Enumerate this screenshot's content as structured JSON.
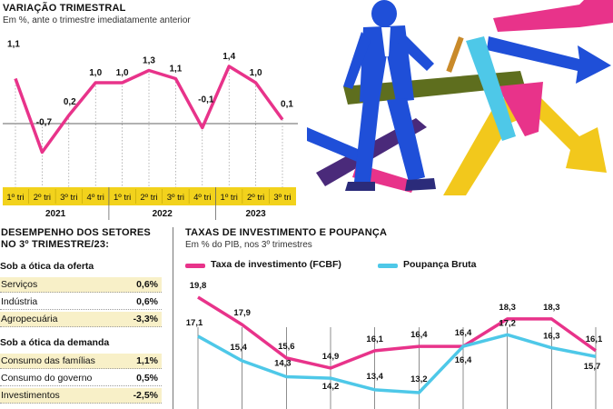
{
  "left_chart": {
    "title": "VARIAÇÃO TRIMESTRAL",
    "subtitle": "Em %, ante o trimestre imediatamente anterior",
    "chart_data": {
      "type": "line",
      "categories": [
        "1º tri",
        "2º tri",
        "3º tri",
        "4º tri",
        "1º tri",
        "2º tri",
        "3º tri",
        "4º tri",
        "1º tri",
        "2º tri",
        "3º tri"
      ],
      "years": [
        {
          "label": "2021",
          "span": [
            0,
            3
          ]
        },
        {
          "label": "2022",
          "span": [
            4,
            7
          ]
        },
        {
          "label": "2023",
          "span": [
            8,
            10
          ]
        }
      ],
      "values": [
        1.1,
        -0.7,
        0.2,
        1.0,
        1.0,
        1.3,
        1.1,
        -0.1,
        1.4,
        1.0,
        0.1
      ],
      "labels": [
        "1,1",
        "-0,7",
        "0,2",
        "1,0",
        "1,0",
        "1,3",
        "1,1",
        "-0,1",
        "1,4",
        "1,0",
        "0,1"
      ],
      "line_color": "#e8338a",
      "band_color": "#f2d21c",
      "zero_line": true
    }
  },
  "sectors": {
    "title_line1": "DESEMPENHO DOS SETORES",
    "title_line2": "NO 3º TRIMESTRE/23:",
    "groups": [
      {
        "heading": "Sob a ótica da oferta",
        "rows": [
          {
            "label": "Serviços",
            "value": "0,6%"
          },
          {
            "label": "Indústria",
            "value": "0,6%"
          },
          {
            "label": "Agropecuária",
            "value": "-3,3%"
          }
        ]
      },
      {
        "heading": "Sob a ótica da demanda",
        "rows": [
          {
            "label": "Consumo das famílias",
            "value": "1,1%"
          },
          {
            "label": "Consumo do governo",
            "value": "0,5%"
          },
          {
            "label": "Investimentos",
            "value": "-2,5%"
          }
        ]
      }
    ],
    "shade_color": "#f8f0c8"
  },
  "right_chart": {
    "title": "TAXAS DE INVESTIMENTO E POUPANÇA",
    "subtitle": "Em % do PIB, nos 3º trimestres",
    "chart_data": {
      "type": "line",
      "series": [
        {
          "name": "Taxa de investimento (FCBF)",
          "color": "#e8338a",
          "values": [
            19.8,
            17.9,
            15.6,
            14.9,
            16.1,
            16.4,
            16.4,
            18.3,
            18.3,
            16.1
          ],
          "labels": [
            "19,8",
            "17,9",
            "15,6",
            "14,9",
            "16,1",
            "16,4",
            "16,4",
            "18,3",
            "18,3",
            "16,1"
          ]
        },
        {
          "name": "Poupança Bruta",
          "color": "#4ec8e8",
          "values": [
            17.1,
            15.4,
            14.3,
            14.2,
            13.4,
            13.2,
            16.4,
            17.2,
            16.3,
            15.7
          ],
          "labels": [
            "17,1",
            "15,4",
            "14,3",
            "14,2",
            "13,4",
            "13,2",
            "16,4",
            "17,2",
            "16,3",
            "15,7"
          ]
        }
      ],
      "vertical_gridlines": true
    }
  },
  "illustration": {
    "icon": "businessman-walking-with-arrows-illustration",
    "colors": [
      "#1f4fd8",
      "#e8338a",
      "#f2c81c",
      "#5e6e1e",
      "#4a2a7a",
      "#4ec8e8"
    ]
  }
}
